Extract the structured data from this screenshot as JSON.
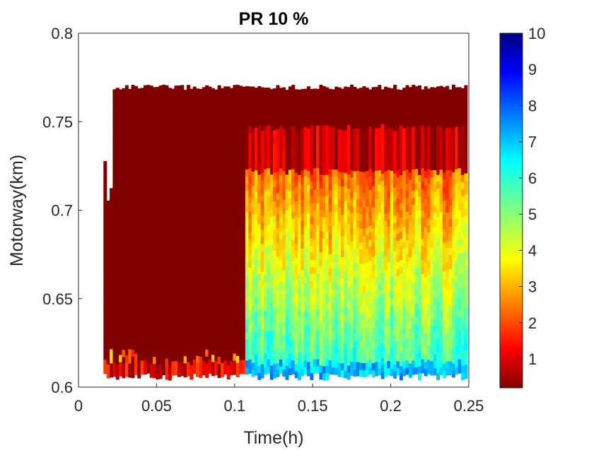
{
  "chart_data": {
    "type": "heatmap",
    "title": "PR 10 %",
    "xlabel": "Time(h)",
    "ylabel": "Motorway(km)",
    "xlim": [
      0,
      0.25
    ],
    "ylim": [
      0.6,
      0.8
    ],
    "x_ticks": [
      {
        "value": 0,
        "label": "0"
      },
      {
        "value": 0.05,
        "label": "0.05"
      },
      {
        "value": 0.1,
        "label": "0.1"
      },
      {
        "value": 0.15,
        "label": "0.15"
      },
      {
        "value": 0.2,
        "label": "0.2"
      },
      {
        "value": 0.25,
        "label": "0.25"
      }
    ],
    "y_ticks": [
      {
        "value": 0.6,
        "label": "0.6"
      },
      {
        "value": 0.65,
        "label": "0.65"
      },
      {
        "value": 0.7,
        "label": "0.7"
      },
      {
        "value": 0.75,
        "label": "0.75"
      },
      {
        "value": 0.8,
        "label": "0.8"
      }
    ],
    "colormap": "jet",
    "colorbar": {
      "range": [
        0.2,
        10
      ],
      "ticks": [
        {
          "value": 1,
          "label": "1"
        },
        {
          "value": 2,
          "label": "2"
        },
        {
          "value": 3,
          "label": "3"
        },
        {
          "value": 4,
          "label": "4"
        },
        {
          "value": 5,
          "label": "5"
        },
        {
          "value": 6,
          "label": "6"
        },
        {
          "value": 7,
          "label": "7"
        },
        {
          "value": 8,
          "label": "8"
        },
        {
          "value": 9,
          "label": "9"
        },
        {
          "value": 10,
          "label": "10"
        }
      ]
    },
    "data_extent": {
      "time_start": 0.016,
      "time_end": 0.249,
      "space_start": 0.604,
      "space_end": 0.771
    },
    "congestion_onset_time": 0.106,
    "grid": false
  }
}
